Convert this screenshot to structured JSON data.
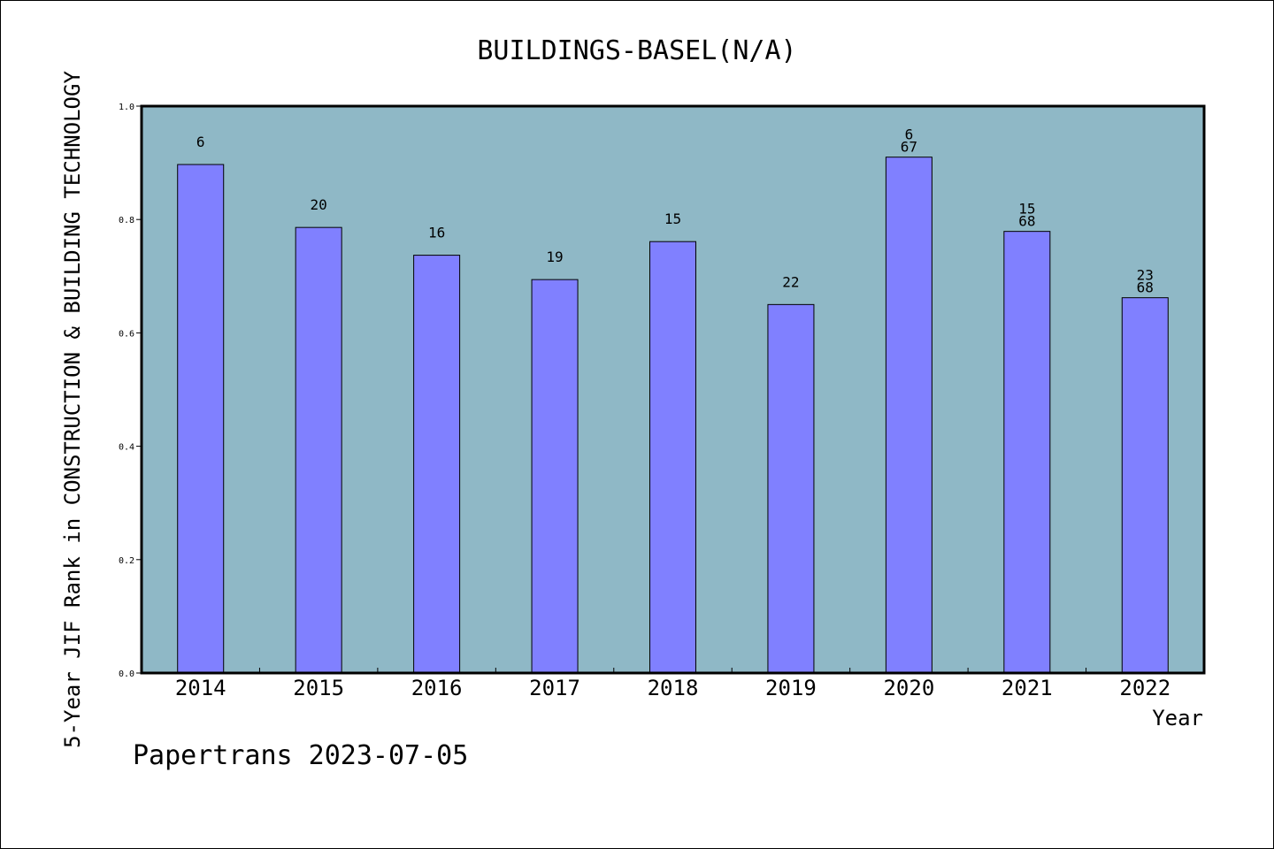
{
  "chart_data": {
    "type": "bar",
    "title": "BUILDINGS-BASEL(N/A)",
    "xlabel": "Year",
    "ylabel": "5-Year JIF Rank in CONSTRUCTION & BUILDING TECHNOLOGY",
    "categories": [
      "2014",
      "2015",
      "2016",
      "2017",
      "2018",
      "2019",
      "2020",
      "2021",
      "2022"
    ],
    "values": [
      0.897,
      0.786,
      0.737,
      0.694,
      0.761,
      0.65,
      0.91,
      0.779,
      0.662
    ],
    "labels": [
      [
        "6"
      ],
      [
        "20"
      ],
      [
        "16"
      ],
      [
        "19"
      ],
      [
        "15"
      ],
      [
        "22"
      ],
      [
        "6",
        "67"
      ],
      [
        "15",
        "68"
      ],
      [
        "23",
        "68"
      ]
    ],
    "ylim": [
      0,
      1.0
    ],
    "yticks": [
      "0.0",
      "0.2",
      "0.4",
      "0.6",
      "0.8",
      "1.0"
    ],
    "grid": false,
    "colors": {
      "plot_background": "#8fb8c6",
      "bar_fill": "#8080ff",
      "bar_stroke": "#000000"
    }
  },
  "footer": "Papertrans 2023-07-05"
}
